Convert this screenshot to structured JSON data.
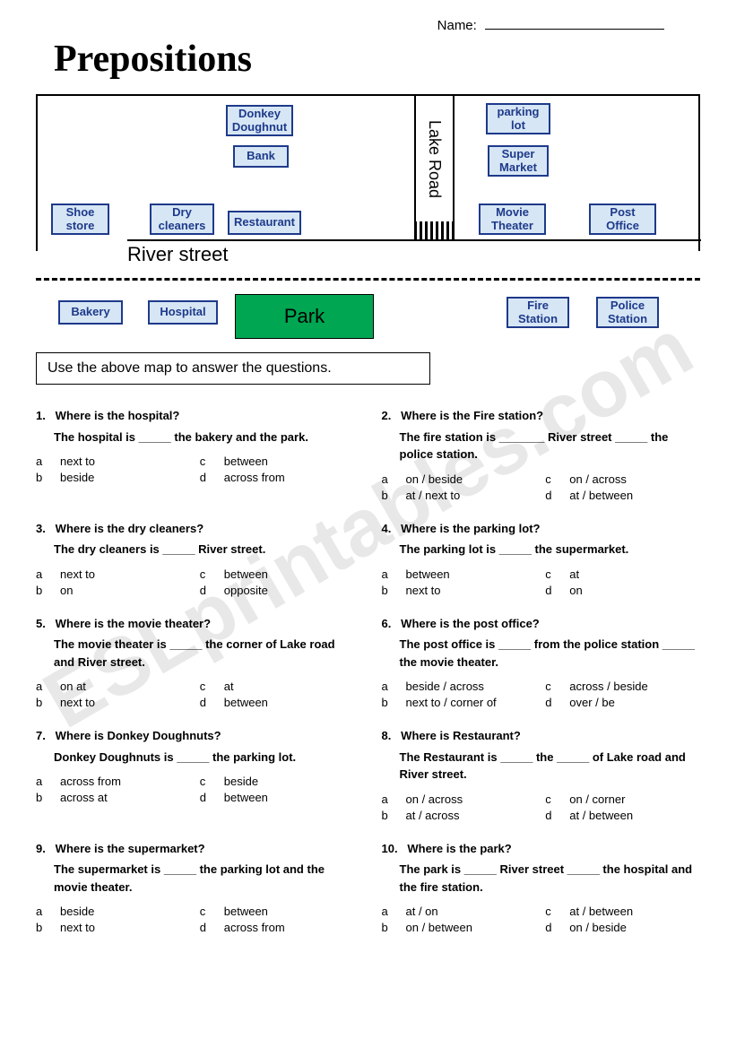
{
  "header": {
    "name_label": "Name:",
    "title": "Prepositions"
  },
  "watermark": "ESLprintables.com",
  "map": {
    "lake_road": "Lake Road",
    "river_street": "River street",
    "buildings_top": {
      "donkey": "Donkey Doughnut",
      "bank": "Bank",
      "shoe": "Shoe store",
      "dry": "Dry cleaners",
      "restaurant": "Restaurant",
      "parking": "parking lot",
      "super": "Super Market",
      "movie": "Movie Theater",
      "post": "Post Office"
    },
    "buildings_bottom": {
      "bakery": "Bakery",
      "hospital": "Hospital",
      "park": "Park",
      "fire": "Fire Station",
      "police": "Police Station"
    }
  },
  "instruction": "Use the above map to answer the questions.",
  "questions": [
    {
      "num": "1.",
      "q": "Where is the hospital?",
      "s": "The hospital is _____ the bakery and the park.",
      "opts": {
        "a": "next to",
        "b": "beside",
        "c": "between",
        "d": "across from"
      }
    },
    {
      "num": "2.",
      "q": "Where is the Fire station?",
      "s": "The fire station is _______ River street _____ the police station.",
      "opts": {
        "a": "on / beside",
        "b": "at / next to",
        "c": "on / across",
        "d": "at / between"
      }
    },
    {
      "num": "3.",
      "q": "Where is the dry cleaners?",
      "s": "The dry cleaners is _____ River street.",
      "opts": {
        "a": "next to",
        "b": "on",
        "c": "between",
        "d": "opposite"
      }
    },
    {
      "num": "4.",
      "q": "Where is the parking lot?",
      "s": "The parking lot is _____ the supermarket.",
      "opts": {
        "a": "between",
        "b": "next to",
        "c": "at",
        "d": "on"
      }
    },
    {
      "num": "5.",
      "q": "Where is the movie theater?",
      "s": "The movie theater is _____ the corner of Lake road and River street.",
      "opts": {
        "a": "on at",
        "b": "next to",
        "c": "at",
        "d": "between"
      }
    },
    {
      "num": "6.",
      "q": "Where is the post office?",
      "s": "The post office is _____ from the police station _____ the movie theater.",
      "opts": {
        "a": "beside / across",
        "b": "next to / corner of",
        "c": "across / beside",
        "d": "over / be"
      }
    },
    {
      "num": "7.",
      "q": "Where is Donkey Doughnuts?",
      "s": "Donkey Doughnuts is _____ the parking lot.",
      "opts": {
        "a": "across from",
        "b": "across at",
        "c": "beside",
        "d": "between"
      }
    },
    {
      "num": "8.",
      "q": "Where is Restaurant?",
      "s": "The Restaurant is _____ the _____ of  Lake road and River street.",
      "opts": {
        "a": "on / across",
        "b": "at / across",
        "c": "on / corner",
        "d": "at / between"
      }
    },
    {
      "num": "9.",
      "q": "Where is the supermarket?",
      "s": "The supermarket is _____ the parking lot and the movie theater.",
      "opts": {
        "a": "beside",
        "b": "next to",
        "c": "between",
        "d": "across from"
      }
    },
    {
      "num": "10.",
      "q": "Where is the park?",
      "s": "The park is _____ River street _____ the hospital and the fire station.",
      "opts": {
        "a": "at / on",
        "b": "on / between",
        "c": "at / between",
        "d": "on / beside"
      }
    }
  ]
}
